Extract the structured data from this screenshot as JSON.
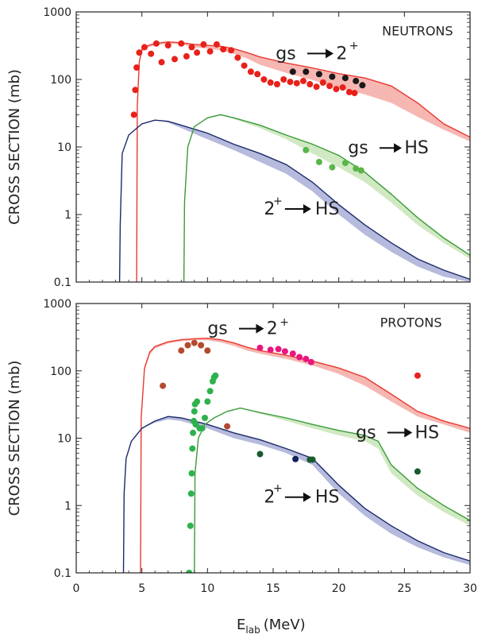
{
  "chart_data": [
    {
      "type": "line",
      "title": "NEUTRONS",
      "ylabel": "CROSS SECTION (mb)",
      "xlabel": "",
      "xlim": [
        0,
        30
      ],
      "ylim": [
        0.1,
        1000
      ],
      "yscale": "log",
      "x_ticks": [
        0,
        5,
        10,
        15,
        20,
        25,
        30
      ],
      "y_ticks": [
        "0.1",
        "1",
        "10",
        "100",
        "1000"
      ],
      "grid": false,
      "series": [
        {
          "color": "#e8392e",
          "band_color": "#f4aaa4",
          "x": [
            4.6,
            4.65,
            4.8,
            5.0,
            5.5,
            6,
            7,
            8,
            9,
            10,
            11,
            12,
            13,
            14,
            16,
            18,
            20,
            22,
            24,
            26,
            28,
            30
          ],
          "y": [
            0.1,
            40,
            180,
            280,
            320,
            340,
            360,
            350,
            330,
            320,
            310,
            285,
            250,
            215,
            175,
            148,
            122,
            105,
            80,
            45,
            22,
            14
          ],
          "band_low": [
            0.1,
            36,
            165,
            260,
            300,
            320,
            340,
            330,
            300,
            285,
            270,
            240,
            205,
            165,
            125,
            98,
            75,
            60,
            45,
            28,
            18,
            12
          ]
        },
        {
          "color": "#1b2a6b",
          "band_color": "#a9aed6",
          "x": [
            3.3,
            3.35,
            3.5,
            4,
            5,
            6,
            7,
            8,
            10,
            12,
            14,
            16,
            18,
            20,
            22,
            24,
            26,
            28,
            30
          ],
          "y": [
            0.1,
            0.7,
            8,
            15,
            22,
            25,
            24,
            21,
            16,
            11,
            8,
            5.5,
            3,
            1.4,
            0.7,
            0.38,
            0.22,
            0.15,
            0.11
          ],
          "band_low": [
            0.1,
            0.7,
            8,
            15,
            22,
            25,
            23,
            19,
            13,
            9,
            6,
            4,
            2.2,
            1.0,
            0.5,
            0.28,
            0.17,
            0.12,
            0.09
          ]
        },
        {
          "color": "#3a9a3a",
          "band_color": "#c9e5b8",
          "x": [
            8.2,
            8.25,
            8.5,
            9,
            10,
            11,
            12,
            14,
            16,
            18,
            20,
            22,
            24,
            26,
            28,
            30
          ],
          "y": [
            0.1,
            1.5,
            10,
            20,
            27,
            30,
            27,
            21,
            15,
            11,
            7.5,
            4.2,
            2.0,
            0.9,
            0.45,
            0.25
          ],
          "band_low": [
            0.1,
            1.5,
            10,
            20,
            27,
            30,
            26,
            19,
            13,
            8,
            5,
            3,
            1.5,
            0.7,
            0.38,
            0.22
          ]
        }
      ],
      "scatter": [
        {
          "color": "#e8211b",
          "x": [
            4.4,
            4.5,
            4.6,
            4.8,
            5.2,
            5.7,
            6.1,
            6.5,
            7.0,
            7.5,
            8.0,
            8.4,
            8.8,
            9.2,
            9.7,
            10.2,
            10.7,
            11.2,
            11.8,
            12.3,
            12.8,
            13.3,
            13.8,
            14.3,
            14.8,
            15.3,
            15.8,
            16.3,
            16.8,
            17.3,
            17.8,
            18.3,
            18.8,
            19.3,
            19.8,
            20.3,
            20.8,
            21.2
          ],
          "y": [
            30,
            70,
            150,
            250,
            300,
            240,
            340,
            180,
            320,
            200,
            340,
            220,
            300,
            250,
            330,
            260,
            330,
            280,
            270,
            210,
            160,
            130,
            120,
            100,
            90,
            85,
            100,
            92,
            88,
            95,
            85,
            78,
            90,
            80,
            72,
            76,
            65,
            63
          ]
        },
        {
          "color": "#1a1a1a",
          "x": [
            16.5,
            17.5,
            18.5,
            19.5,
            20.5,
            21.3,
            21.8
          ],
          "y": [
            130,
            130,
            120,
            110,
            105,
            95,
            82
          ]
        },
        {
          "color": "#5ab54a",
          "x": [
            17.5,
            18.5,
            19.5,
            20.5,
            21.3,
            21.7
          ],
          "y": [
            9,
            6,
            5,
            5.8,
            4.8,
            4.5
          ]
        }
      ],
      "annotations": [
        {
          "text": "NEUTRONS",
          "x": 26,
          "y": 450
        },
        {
          "text": "gs",
          "x": 15.2,
          "y": 200
        },
        {
          "text": "2",
          "x": 19.8,
          "y": 200
        },
        {
          "text": "+",
          "x": 20.8,
          "y": 280
        },
        {
          "text": "gs",
          "x": 20.7,
          "y": 8
        },
        {
          "text": "HS",
          "x": 25.0,
          "y": 8
        },
        {
          "text": "2",
          "x": 14.3,
          "y": 1.0
        },
        {
          "text": "+",
          "x": 15.0,
          "y": 1.4
        },
        {
          "text": "HS",
          "x": 18.2,
          "y": 1.0
        }
      ]
    },
    {
      "type": "line",
      "title": "PROTONS",
      "ylabel": "CROSS SECTION (mb)",
      "xlabel": "E",
      "xlabel_sub": "lab",
      "xlabel_unit": "(MeV)",
      "xlim": [
        0,
        30
      ],
      "ylim": [
        0.1,
        1000
      ],
      "yscale": "log",
      "x_ticks": [
        0,
        5,
        10,
        15,
        20,
        25,
        30
      ],
      "x_tick_labels": [
        "0",
        "5",
        "10",
        "15",
        "20",
        "25",
        "30"
      ],
      "y_ticks": [
        "0.1",
        "1",
        "10",
        "100",
        "1000"
      ],
      "grid": false,
      "series": [
        {
          "color": "#e8392e",
          "band_color": "#f4aaa4",
          "x": [
            4.9,
            4.95,
            5.2,
            5.6,
            6,
            7,
            8,
            9,
            10,
            11,
            12,
            13,
            14,
            16,
            18,
            20,
            22,
            24,
            26,
            28,
            30
          ],
          "y": [
            0.1,
            20,
            110,
            190,
            230,
            270,
            290,
            300,
            305,
            290,
            260,
            225,
            200,
            170,
            140,
            110,
            80,
            45,
            25,
            18,
            14
          ],
          "band_low": [
            0.1,
            18,
            100,
            175,
            215,
            255,
            275,
            285,
            285,
            265,
            235,
            200,
            180,
            150,
            120,
            90,
            60,
            35,
            21,
            16,
            12
          ]
        },
        {
          "color": "#1b2a6b",
          "band_color": "#a9aed6",
          "x": [
            3.6,
            3.65,
            3.8,
            4.2,
            5,
            6,
            7,
            8,
            10,
            12,
            14,
            16,
            18,
            20,
            22,
            24,
            26,
            28,
            30
          ],
          "y": [
            0.1,
            1.5,
            5,
            9,
            14,
            18,
            21,
            20,
            16,
            12,
            9.5,
            7,
            5,
            2.0,
            0.9,
            0.5,
            0.3,
            0.2,
            0.15
          ],
          "band_low": [
            0.1,
            1.5,
            5,
            9,
            14,
            17,
            19,
            18,
            14,
            10,
            8,
            6,
            4,
            1.5,
            0.7,
            0.38,
            0.24,
            0.17,
            0.13
          ]
        },
        {
          "color": "#3a9a3a",
          "band_color": "#c9e5b8",
          "x": [
            9.0,
            9.05,
            9.3,
            9.8,
            10.5,
            11.5,
            12.5,
            14,
            16,
            18,
            20,
            22,
            23,
            24,
            26,
            28,
            30
          ],
          "y": [
            0.1,
            3,
            10,
            16,
            20,
            25,
            28,
            24,
            20,
            16,
            13,
            11,
            9,
            4,
            1.8,
            1.0,
            0.6
          ],
          "band_low": [
            0.1,
            3,
            10,
            16,
            20,
            25,
            28,
            23,
            18,
            14,
            11,
            9,
            7,
            3.0,
            1.4,
            0.8,
            0.5
          ]
        }
      ],
      "scatter": [
        {
          "color": "#b5492e",
          "x": [
            6.6,
            8.0,
            8.5,
            9.0,
            9.5,
            10.0,
            11.5
          ],
          "y": [
            60,
            200,
            240,
            260,
            240,
            200,
            15
          ]
        },
        {
          "color": "#e8177f",
          "x": [
            14.0,
            14.8,
            15.4,
            15.9,
            16.5,
            17.0,
            17.5,
            17.9
          ],
          "y": [
            220,
            205,
            210,
            195,
            180,
            160,
            150,
            135
          ]
        },
        {
          "color": "#e8211b",
          "x": [
            26.0
          ],
          "y": [
            85
          ]
        },
        {
          "color": "#2fb14d",
          "x": [
            8.6,
            8.7,
            8.75,
            8.8,
            8.85,
            8.9,
            8.95,
            9.0,
            9.05,
            9.1,
            9.2,
            9.4,
            9.6,
            9.8,
            10.0,
            10.2,
            10.4,
            10.5,
            10.6
          ],
          "y": [
            0.1,
            0.5,
            1.5,
            3,
            7,
            12,
            18,
            25,
            32,
            16,
            35,
            14,
            14,
            20,
            35,
            50,
            70,
            80,
            85
          ]
        },
        {
          "color": "#1a5a2e",
          "x": [
            14.0,
            17.8,
            18.0,
            26.0
          ],
          "y": [
            5.8,
            4.8,
            4.8,
            3.2
          ]
        },
        {
          "color": "#10205a",
          "x": [
            16.7
          ],
          "y": [
            4.9
          ]
        }
      ],
      "annotations": [
        {
          "text": "PROTONS",
          "x": 25.5,
          "y": 450
        },
        {
          "text": "gs",
          "x": 10.0,
          "y": 350
        },
        {
          "text": "2",
          "x": 14.5,
          "y": 350
        },
        {
          "text": "+",
          "x": 15.5,
          "y": 470
        },
        {
          "text": "gs",
          "x": 21.3,
          "y": 10
        },
        {
          "text": "HS",
          "x": 25.8,
          "y": 10
        },
        {
          "text": "2",
          "x": 14.3,
          "y": 1.1
        },
        {
          "text": "+",
          "x": 15.0,
          "y": 1.6
        },
        {
          "text": "HS",
          "x": 18.2,
          "y": 1.1
        }
      ]
    }
  ]
}
